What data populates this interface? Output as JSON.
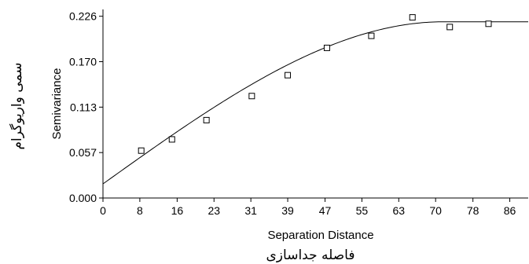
{
  "chart_data": {
    "type": "scatter",
    "xlabel": "Separation Distance",
    "xlabel_fa": "فاصله جداسازی",
    "ylabel": "Semivariance",
    "ylabel_fa": "سمی واریوگرام",
    "xlim": [
      0,
      90
    ],
    "ylim": [
      0,
      0.2349
    ],
    "x_ticks": [
      "0",
      "8",
      "16",
      "23",
      "31",
      "39",
      "47",
      "55",
      "63",
      "70",
      "78",
      "86"
    ],
    "x_tick_values": [
      0,
      7.8,
      15.7,
      23.5,
      31.3,
      39.1,
      47.0,
      54.8,
      62.6,
      70.4,
      78.3,
      86.1
    ],
    "y_ticks": [
      "0.000",
      "0.057",
      "0.113",
      "0.170",
      "0.226"
    ],
    "y_tick_values": [
      0,
      0.0566,
      0.1132,
      0.1698,
      0.2264
    ],
    "grid": false,
    "points": [
      {
        "x": 8.1,
        "y": 0.059
      },
      {
        "x": 14.6,
        "y": 0.073
      },
      {
        "x": 21.9,
        "y": 0.097
      },
      {
        "x": 31.5,
        "y": 0.127
      },
      {
        "x": 39.1,
        "y": 0.153
      },
      {
        "x": 47.4,
        "y": 0.187
      },
      {
        "x": 56.8,
        "y": 0.202
      },
      {
        "x": 65.5,
        "y": 0.225
      },
      {
        "x": 73.4,
        "y": 0.213
      },
      {
        "x": 81.6,
        "y": 0.217
      }
    ],
    "model_curve": {
      "kind": "spherical",
      "nugget": 0.0176,
      "sill": 0.2195,
      "range": 72.0
    }
  }
}
